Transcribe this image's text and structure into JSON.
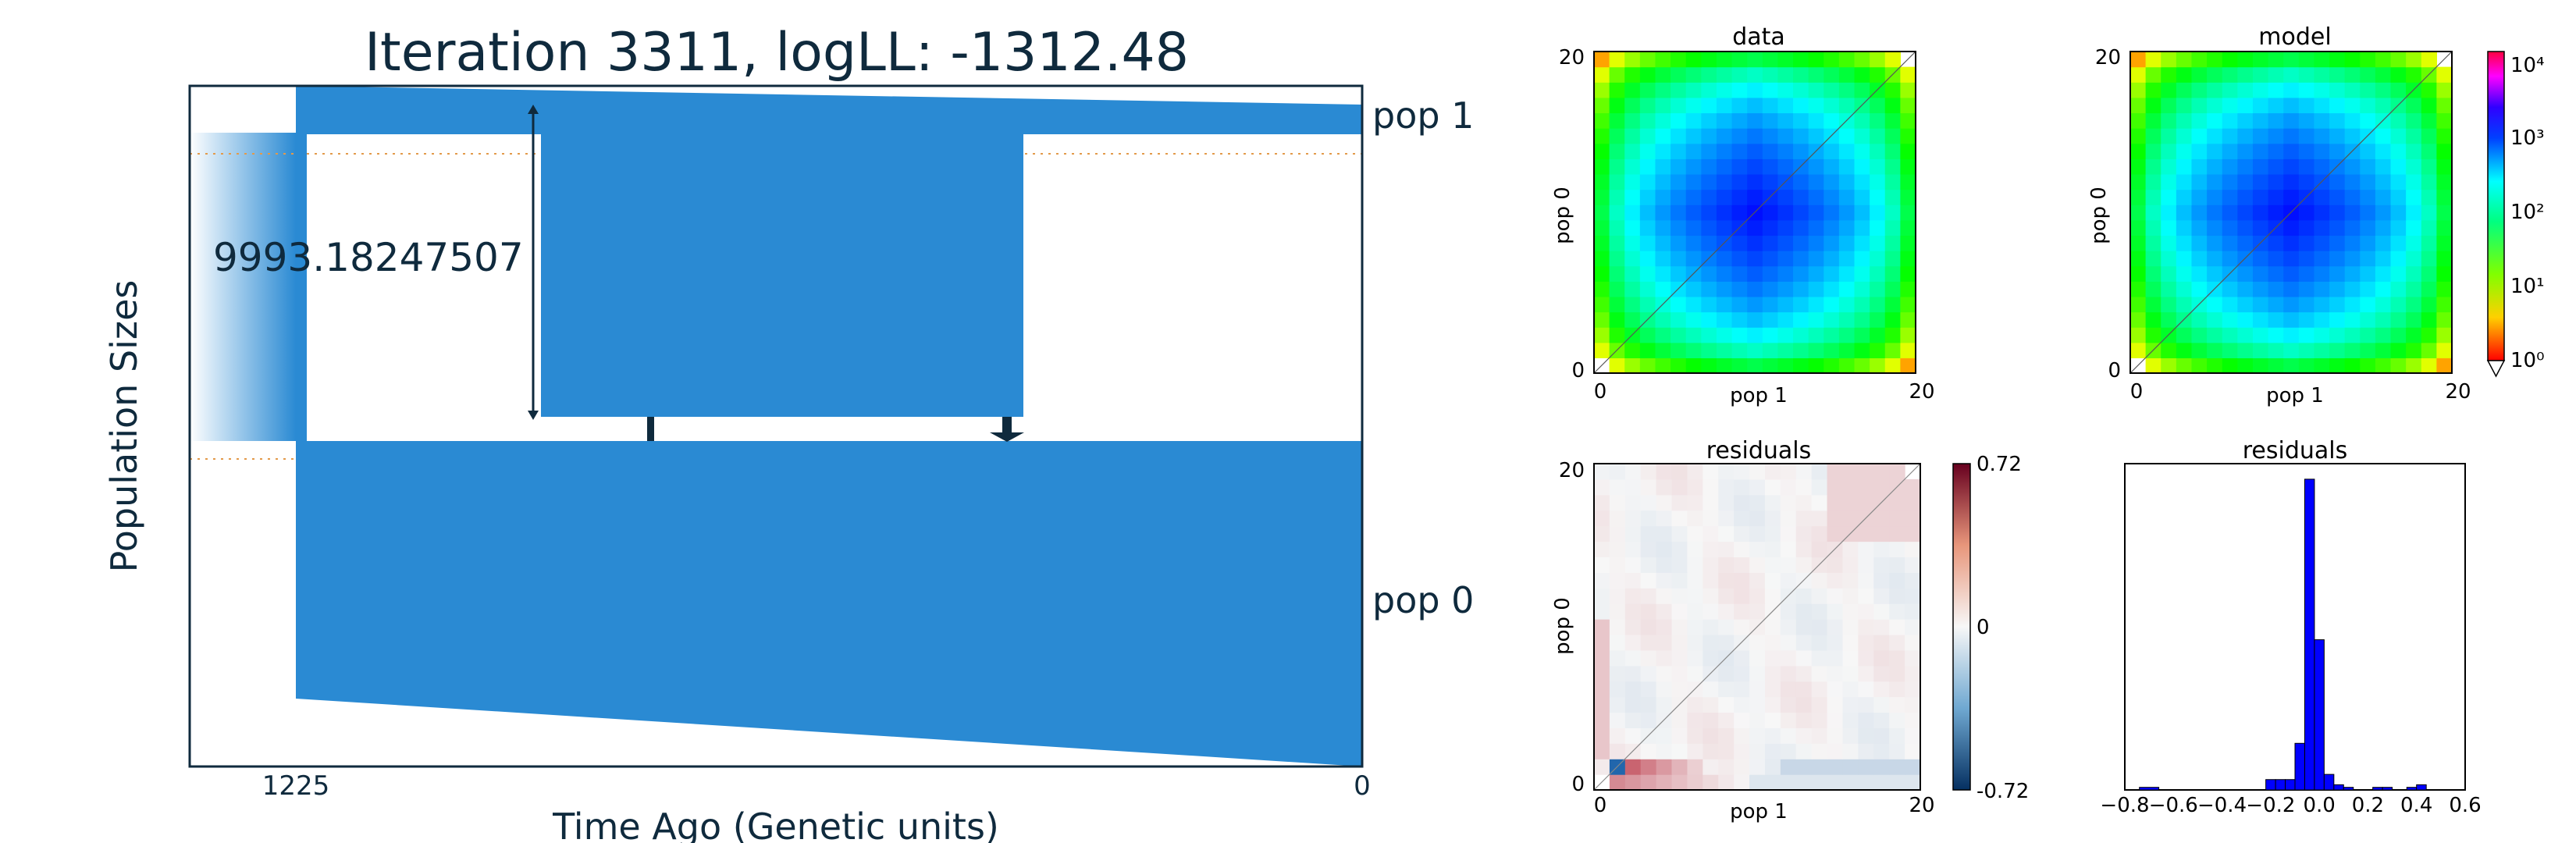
{
  "chart_data": [
    {
      "type": "demographic-model",
      "title": "Iteration 3311, logLL:   -1312.48",
      "xlabel": "Time Ago (Genetic units)",
      "ylabel": "Population Sizes",
      "xticks": [
        "1225",
        "0"
      ],
      "annotation": "9993.18247507",
      "populations": [
        {
          "name": "pop 1"
        },
        {
          "name": "pop 0"
        }
      ],
      "color": "#2a8ad3"
    },
    {
      "type": "heatmap",
      "title": "data",
      "xlabel": "pop 1",
      "ylabel": "pop 0",
      "xticks": [
        "0",
        "20"
      ],
      "yticks": [
        "0",
        "20"
      ],
      "xlim": [
        0,
        20
      ],
      "ylim": [
        0,
        20
      ],
      "colorscale": "log",
      "clim": [
        1,
        10000
      ]
    },
    {
      "type": "heatmap",
      "title": "model",
      "xlabel": "pop 1",
      "ylabel": "pop 0",
      "xticks": [
        "0",
        "20"
      ],
      "yticks": [
        "0",
        "20"
      ],
      "xlim": [
        0,
        20
      ],
      "ylim": [
        0,
        20
      ],
      "colorscale": "log",
      "clim": [
        1,
        10000
      ],
      "colorbar_ticks": [
        "10⁰",
        "10¹",
        "10²",
        "10³",
        "10⁴"
      ]
    },
    {
      "type": "heatmap",
      "title": "residuals",
      "xlabel": "pop 1",
      "ylabel": "pop 0",
      "xticks": [
        "0",
        "20"
      ],
      "yticks": [
        "0",
        "20"
      ],
      "xlim": [
        0,
        20
      ],
      "ylim": [
        0,
        20
      ],
      "clim": [
        -0.72,
        0.72
      ],
      "colorbar_ticks": [
        "0.72",
        "0",
        "-0.72"
      ]
    },
    {
      "type": "bar",
      "title": "residuals",
      "xticks": [
        "−0.8",
        "−0.6",
        "−0.4",
        "−0.2",
        "0.0",
        "0.2",
        "0.4",
        "0.6"
      ],
      "xlim": [
        -0.8,
        0.6
      ],
      "bins": [
        {
          "x0": -0.74,
          "x1": -0.66,
          "count": 1
        },
        {
          "x0": -0.22,
          "x1": -0.18,
          "count": 4
        },
        {
          "x0": -0.18,
          "x1": -0.14,
          "count": 4
        },
        {
          "x0": -0.14,
          "x1": -0.1,
          "count": 4
        },
        {
          "x0": -0.1,
          "x1": -0.06,
          "count": 18
        },
        {
          "x0": -0.06,
          "x1": -0.02,
          "count": 120
        },
        {
          "x0": -0.02,
          "x1": 0.02,
          "count": 58
        },
        {
          "x0": 0.02,
          "x1": 0.06,
          "count": 6
        },
        {
          "x0": 0.06,
          "x1": 0.1,
          "count": 2
        },
        {
          "x0": 0.1,
          "x1": 0.14,
          "count": 1
        },
        {
          "x0": 0.22,
          "x1": 0.26,
          "count": 1
        },
        {
          "x0": 0.26,
          "x1": 0.3,
          "count": 1
        },
        {
          "x0": 0.36,
          "x1": 0.4,
          "count": 1
        },
        {
          "x0": 0.4,
          "x1": 0.44,
          "count": 2
        }
      ],
      "bar_color": "#0000ff"
    }
  ]
}
